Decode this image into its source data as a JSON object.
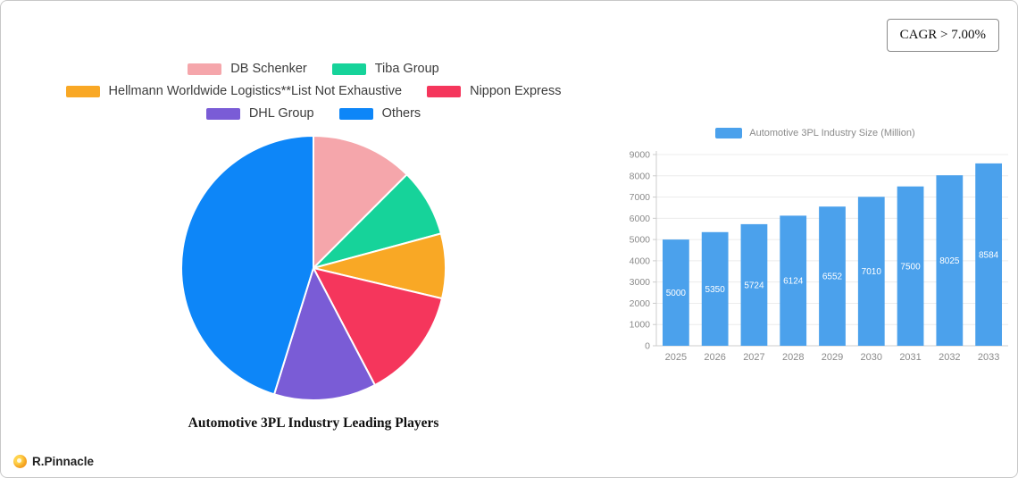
{
  "cagr": {
    "label": "CAGR > 7.00%"
  },
  "brand": {
    "name": "R.Pinnacle"
  },
  "chart_data": [
    {
      "type": "pie",
      "title": "Automotive 3PL Industry Leading Players",
      "labels": [
        "DB Schenker",
        "Tiba Group",
        "Hellmann Worldwide Logistics**List Not Exhaustive",
        "Nippon Express",
        "DHL Group",
        "Others"
      ],
      "values": [
        12.5,
        8.3,
        7.9,
        13.6,
        12.5,
        45.2
      ],
      "colors": [
        "#f5a6ab",
        "#16d39a",
        "#f9a825",
        "#f5365c",
        "#7a5cd6",
        "#0d86f8"
      ],
      "legend_rows": [
        [
          0,
          1
        ],
        [
          2,
          3
        ],
        [
          4,
          5
        ]
      ],
      "legend_position": "top"
    },
    {
      "type": "bar",
      "title": "Automotive 3PL Industry Size (Million)",
      "categories": [
        "2025",
        "2026",
        "2027",
        "2028",
        "2029",
        "2030",
        "2031",
        "2032",
        "2033"
      ],
      "values": [
        5000,
        5350,
        5724,
        6124,
        6552,
        7010,
        7500,
        8025,
        8584
      ],
      "ylim": [
        0,
        9000
      ],
      "ytick_step": 1000,
      "bar_color": "#4ba1ec",
      "grid": true,
      "legend_position": "top",
      "value_labels": "inside-white"
    }
  ]
}
